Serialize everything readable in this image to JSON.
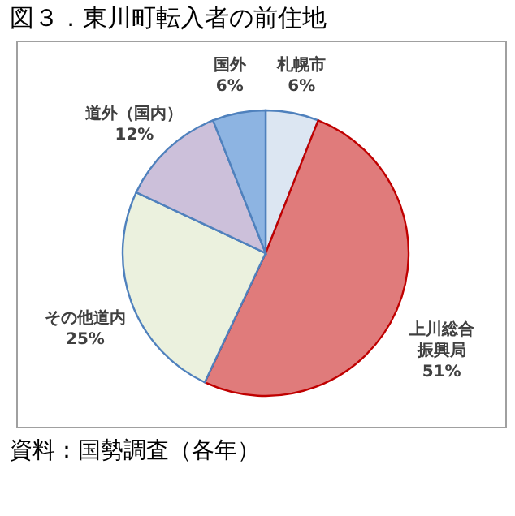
{
  "chart_data": {
    "type": "pie",
    "title": "図３．東川町転入者の前住地",
    "categories": [
      "札幌市",
      "上川総合振興局",
      "その他道内",
      "道外（国内）",
      "国外"
    ],
    "values": [
      6,
      51,
      25,
      12,
      6
    ],
    "value_labels": [
      "6%",
      "51%",
      "25%",
      "12%",
      "6%"
    ],
    "colors": [
      "#dce6f2",
      "#e07b7b",
      "#ebf1de",
      "#ccc0da",
      "#8db4e2"
    ],
    "annotations": [
      "資料：国勢調査（各年）"
    ],
    "legend": false
  }
}
